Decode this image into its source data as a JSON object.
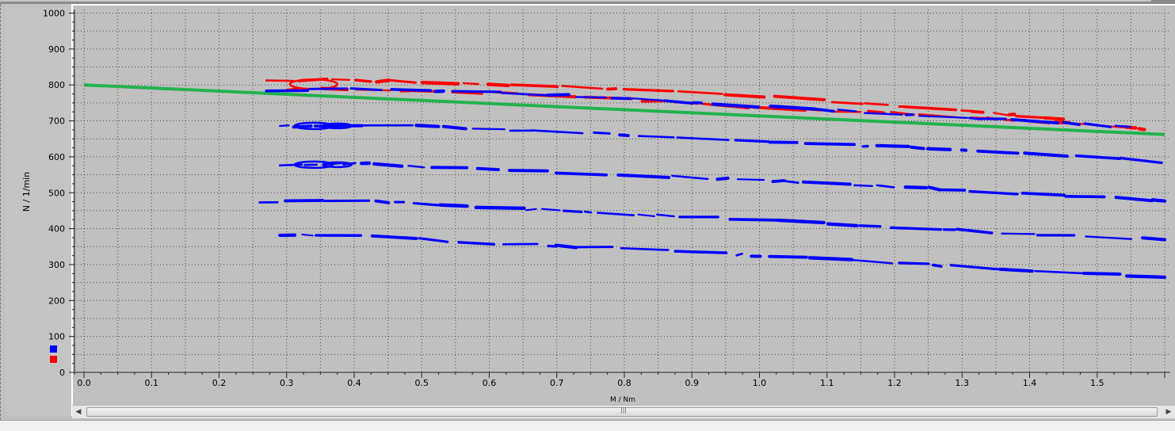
{
  "chart_data": {
    "type": "scatter",
    "xlabel": "M / Nm",
    "ylabel": "N / 1/min",
    "xlim": [
      0.0,
      1.6
    ],
    "ylim": [
      0,
      1000
    ],
    "x_ticks": [
      "0.0",
      "0.1",
      "0.2",
      "0.3",
      "0.4",
      "0.5",
      "0.6",
      "0.7",
      "0.8",
      "0.9",
      "1.0",
      "1.1",
      "1.2",
      "1.3",
      "1.4",
      "1.5"
    ],
    "y_ticks": [
      "0",
      "100",
      "200",
      "300",
      "400",
      "500",
      "600",
      "700",
      "800",
      "900",
      "1000"
    ],
    "grid": true,
    "legend": "bottom-left",
    "colors": {
      "blue": "#0000ff",
      "red": "#ff0000",
      "green": "#22b24c",
      "background": "#c0c0c0",
      "grid": "#4a4a4a"
    },
    "series": [
      {
        "color": "green",
        "style": "line",
        "x": [
          0.0,
          1.6
        ],
        "y": [
          800,
          662
        ]
      },
      {
        "color": "red",
        "style": "scatter",
        "bands": [
          {
            "x": [
              0.27,
              0.35,
              0.5,
              0.7,
              0.9,
              1.1,
              1.3,
              1.45
            ],
            "y": [
              812,
              815,
              808,
              797,
              781,
              756,
              727,
              706
            ]
          },
          {
            "x": [
              0.3,
              0.4,
              0.6,
              0.8,
              1.0,
              1.2,
              1.4,
              1.57
            ],
            "y": [
              790,
              788,
              779,
              760,
              736,
              722,
              700,
              678
            ]
          }
        ]
      },
      {
        "color": "blue",
        "style": "scatter",
        "bands": [
          {
            "x": [
              0.27,
              0.4,
              0.6,
              0.8,
              1.0,
              1.2,
              1.4,
              1.55
            ],
            "y": [
              782,
              790,
              780,
              763,
              741,
              720,
              700,
              682
            ]
          },
          {
            "x": [
              0.29,
              0.5,
              0.7,
              0.9,
              1.1,
              1.3,
              1.5,
              1.6
            ],
            "y": [
              686,
              685,
              670,
              655,
              635,
              620,
              598,
              585
            ]
          },
          {
            "x": [
              0.29,
              0.4,
              0.6,
              0.8,
              1.0,
              1.2,
              1.4,
              1.6
            ],
            "y": [
              578,
              582,
              565,
              550,
              535,
              518,
              496,
              478
            ]
          },
          {
            "x": [
              0.26,
              0.4,
              0.6,
              0.8,
              1.0,
              1.2,
              1.4,
              1.6
            ],
            "y": [
              475,
              478,
              460,
              440,
              425,
              405,
              385,
              370
            ]
          },
          {
            "x": [
              0.29,
              0.4,
              0.6,
              0.8,
              1.0,
              1.2,
              1.4,
              1.6
            ],
            "y": [
              383,
              380,
              360,
              345,
              325,
              305,
              285,
              265
            ]
          }
        ]
      }
    ]
  }
}
